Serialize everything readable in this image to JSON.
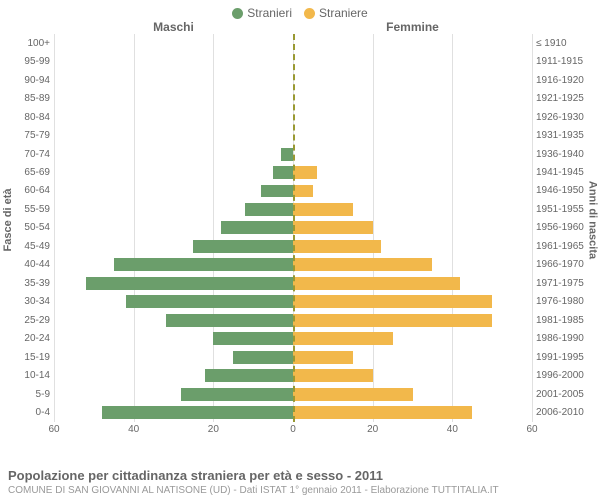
{
  "legend": {
    "male": {
      "label": "Stranieri",
      "color": "#6b9e6b"
    },
    "female": {
      "label": "Straniere",
      "color": "#f2b84b"
    }
  },
  "side_titles": {
    "left": "Maschi",
    "right": "Femmine"
  },
  "axis_labels": {
    "left": "Fasce di età",
    "right": "Anni di nascita"
  },
  "chart": {
    "type": "pyramid-bar",
    "x_max": 60,
    "x_ticks": [
      60,
      40,
      20,
      0,
      20,
      40,
      60
    ],
    "grid_color": "#e0e0e0",
    "center_line_color": "#999933",
    "background_color": "#ffffff",
    "bar_color_left": "#6b9e6b",
    "bar_color_right": "#f2b84b",
    "label_fontsize": 10,
    "rows": [
      {
        "age": "100+",
        "birth": "≤ 1910",
        "m": 0,
        "f": 0
      },
      {
        "age": "95-99",
        "birth": "1911-1915",
        "m": 0,
        "f": 0
      },
      {
        "age": "90-94",
        "birth": "1916-1920",
        "m": 0,
        "f": 0
      },
      {
        "age": "85-89",
        "birth": "1921-1925",
        "m": 0,
        "f": 0
      },
      {
        "age": "80-84",
        "birth": "1926-1930",
        "m": 0,
        "f": 0
      },
      {
        "age": "75-79",
        "birth": "1931-1935",
        "m": 0,
        "f": 0
      },
      {
        "age": "70-74",
        "birth": "1936-1940",
        "m": 3,
        "f": 0
      },
      {
        "age": "65-69",
        "birth": "1941-1945",
        "m": 5,
        "f": 6
      },
      {
        "age": "60-64",
        "birth": "1946-1950",
        "m": 8,
        "f": 5
      },
      {
        "age": "55-59",
        "birth": "1951-1955",
        "m": 12,
        "f": 15
      },
      {
        "age": "50-54",
        "birth": "1956-1960",
        "m": 18,
        "f": 20
      },
      {
        "age": "45-49",
        "birth": "1961-1965",
        "m": 25,
        "f": 22
      },
      {
        "age": "40-44",
        "birth": "1966-1970",
        "m": 45,
        "f": 35
      },
      {
        "age": "35-39",
        "birth": "1971-1975",
        "m": 52,
        "f": 42
      },
      {
        "age": "30-34",
        "birth": "1976-1980",
        "m": 42,
        "f": 50
      },
      {
        "age": "25-29",
        "birth": "1981-1985",
        "m": 32,
        "f": 50
      },
      {
        "age": "20-24",
        "birth": "1986-1990",
        "m": 20,
        "f": 25
      },
      {
        "age": "15-19",
        "birth": "1991-1995",
        "m": 15,
        "f": 15
      },
      {
        "age": "10-14",
        "birth": "1996-2000",
        "m": 22,
        "f": 20
      },
      {
        "age": "5-9",
        "birth": "2001-2005",
        "m": 28,
        "f": 30
      },
      {
        "age": "0-4",
        "birth": "2006-2010",
        "m": 48,
        "f": 45
      }
    ]
  },
  "footer": {
    "title": "Popolazione per cittadinanza straniera per età e sesso - 2011",
    "subtitle": "COMUNE DI SAN GIOVANNI AL NATISONE (UD) - Dati ISTAT 1° gennaio 2011 - Elaborazione TUTTITALIA.IT"
  }
}
